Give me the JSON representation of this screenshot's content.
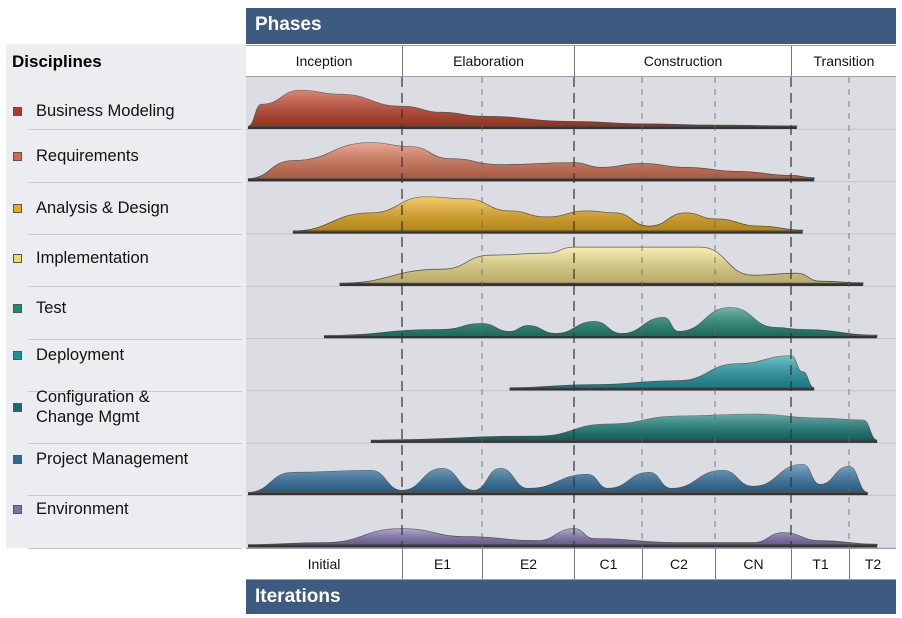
{
  "header": {
    "phases_title": "Phases",
    "iterations_title": "Iterations"
  },
  "disciplines_title": "Disciplines",
  "phases": [
    {
      "label": "Inception",
      "start": 0,
      "end": 1
    },
    {
      "label": "Elaboration",
      "start": 1,
      "end": 3
    },
    {
      "label": "Construction",
      "start": 3,
      "end": 6
    },
    {
      "label": "Transition",
      "start": 6,
      "end": 8
    }
  ],
  "iterations": [
    "Initial",
    "E1",
    "E2",
    "C1",
    "C2",
    "CN",
    "T1",
    "T2"
  ],
  "disciplines": [
    {
      "name": "Business Modeling",
      "color": "#c9432a",
      "marker": "#b33a2a",
      "effort": [
        [
          -0.05,
          0
        ],
        [
          0.1,
          0.55
        ],
        [
          0.35,
          0.9
        ],
        [
          0.6,
          0.8
        ],
        [
          1,
          0.5
        ],
        [
          1.5,
          0.35
        ],
        [
          2,
          0.25
        ],
        [
          3,
          0.12
        ],
        [
          4,
          0.06
        ],
        [
          5,
          0.03
        ],
        [
          6.1,
          0.01
        ]
      ]
    },
    {
      "name": "Requirements",
      "color": "#e07a5a",
      "marker": "#d06a50",
      "effort": [
        [
          -0.2,
          0
        ],
        [
          0.3,
          0.45
        ],
        [
          0.8,
          0.9
        ],
        [
          1.1,
          0.8
        ],
        [
          1.6,
          0.5
        ],
        [
          2.2,
          0.35
        ],
        [
          3,
          0.4
        ],
        [
          3.4,
          0.28
        ],
        [
          4,
          0.38
        ],
        [
          4.6,
          0.28
        ],
        [
          5.3,
          0.18
        ],
        [
          6,
          0.08
        ],
        [
          6.4,
          0.02
        ]
      ]
    },
    {
      "name": "Analysis & Design",
      "color": "#f2b21c",
      "marker": "#e2b010",
      "effort": [
        [
          0.3,
          0
        ],
        [
          0.8,
          0.45
        ],
        [
          1.3,
          0.85
        ],
        [
          1.8,
          0.8
        ],
        [
          2.3,
          0.5
        ],
        [
          2.7,
          0.35
        ],
        [
          3.2,
          0.5
        ],
        [
          3.6,
          0.45
        ],
        [
          4.1,
          0.12
        ],
        [
          4.6,
          0.45
        ],
        [
          5,
          0.3
        ],
        [
          5.6,
          0.12
        ],
        [
          6.2,
          0.02
        ]
      ]
    },
    {
      "name": "Implementation",
      "color": "#f7e58c",
      "marker": "#e8dc70",
      "effort": [
        [
          0.6,
          0
        ],
        [
          1.5,
          0.35
        ],
        [
          2.1,
          0.7
        ],
        [
          2.7,
          0.75
        ],
        [
          3,
          0.9
        ],
        [
          3.8,
          0.9
        ],
        [
          4.8,
          0.9
        ],
        [
          5.5,
          0.2
        ],
        [
          6.1,
          0.25
        ],
        [
          6.5,
          0.05
        ],
        [
          7.3,
          0.01
        ]
      ]
    },
    {
      "name": "Test",
      "color": "#21917a",
      "marker": "#1b8a72",
      "effort": [
        [
          0.5,
          0
        ],
        [
          1.5,
          0.15
        ],
        [
          2,
          0.3
        ],
        [
          2.3,
          0.1
        ],
        [
          2.5,
          0.25
        ],
        [
          2.8,
          0.05
        ],
        [
          3.3,
          0.35
        ],
        [
          3.7,
          0.05
        ],
        [
          4.3,
          0.45
        ],
        [
          4.5,
          0.1
        ],
        [
          5.2,
          0.7
        ],
        [
          5.8,
          0.2
        ],
        [
          6.2,
          0.15
        ],
        [
          7.6,
          0.01
        ]
      ]
    },
    {
      "name": "Deployment",
      "color": "#20a0ab",
      "marker": "#1c8f9a",
      "effort": [
        [
          2.3,
          0
        ],
        [
          3.3,
          0.08
        ],
        [
          4.5,
          0.18
        ],
        [
          5.3,
          0.6
        ],
        [
          6,
          0.8
        ],
        [
          6.2,
          0.4
        ],
        [
          6.4,
          0
        ]
      ]
    },
    {
      "name": "Configuration & \nChange Mgmt",
      "color": "#14807a",
      "marker": "#137067",
      "effort": [
        [
          0.8,
          0
        ],
        [
          2.6,
          0.1
        ],
        [
          3.5,
          0.4
        ],
        [
          4.5,
          0.6
        ],
        [
          5.5,
          0.65
        ],
        [
          6.5,
          0.55
        ],
        [
          7.3,
          0.5
        ],
        [
          7.6,
          0
        ]
      ]
    },
    {
      "name": "Project Management",
      "color": "#3478aa",
      "marker": "#2e6a99",
      "effort": [
        [
          0,
          0
        ],
        [
          0.3,
          0.5
        ],
        [
          0.8,
          0.55
        ],
        [
          1,
          0.05
        ],
        [
          1.5,
          0.6
        ],
        [
          1.9,
          0.05
        ],
        [
          2.2,
          0.6
        ],
        [
          2.5,
          0.1
        ],
        [
          3.2,
          0.45
        ],
        [
          3.5,
          0.1
        ],
        [
          4.1,
          0.5
        ],
        [
          4.4,
          0.1
        ],
        [
          5.1,
          0.55
        ],
        [
          5.5,
          0.15
        ],
        [
          6.2,
          0.7
        ],
        [
          6.5,
          0.2
        ],
        [
          7,
          0.65
        ],
        [
          7.4,
          0
        ]
      ]
    },
    {
      "name": "Environment",
      "color": "#8a7ab8",
      "marker": "#8070b0",
      "effort": [
        [
          -0.2,
          0
        ],
        [
          0.5,
          0.05
        ],
        [
          1,
          0.4
        ],
        [
          1.8,
          0.2
        ],
        [
          2.6,
          0.1
        ],
        [
          3,
          0.4
        ],
        [
          3.3,
          0.15
        ],
        [
          4.5,
          0.05
        ],
        [
          5.5,
          0.05
        ],
        [
          5.9,
          0.3
        ],
        [
          6.5,
          0.1
        ],
        [
          7.6,
          0.01
        ]
      ]
    }
  ]
}
